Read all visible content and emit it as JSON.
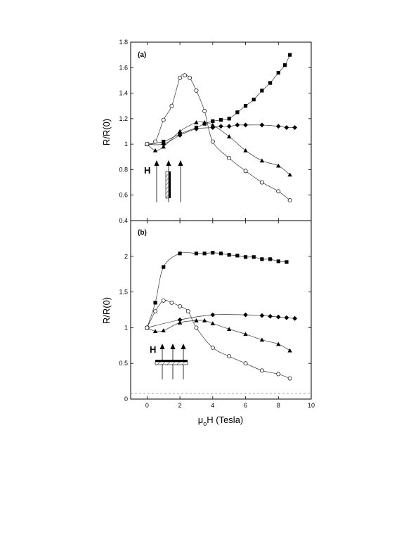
{
  "chart_data": [
    {
      "type": "line",
      "panel_label": "(a)",
      "ylabel": "R/R(0)",
      "xlim": [
        -1,
        10
      ],
      "ylim": [
        0.4,
        1.8
      ],
      "yticks": [
        "0.4",
        "0.6",
        "0.8",
        "1",
        "1.2",
        "1.4",
        "1.6",
        "1.8"
      ],
      "inset_label": "H",
      "series": [
        {
          "marker": "filled-square",
          "x": [
            0,
            1,
            2,
            3,
            3.5,
            4,
            4.5,
            5,
            5.5,
            6,
            6.5,
            7,
            7.5,
            8,
            8.4,
            8.7
          ],
          "y": [
            1.0,
            1.02,
            1.08,
            1.13,
            1.16,
            1.18,
            1.19,
            1.2,
            1.25,
            1.3,
            1.35,
            1.42,
            1.48,
            1.56,
            1.62,
            1.7
          ]
        },
        {
          "marker": "filled-diamond",
          "x": [
            0,
            1,
            2,
            3,
            4,
            4.5,
            5,
            5.5,
            6,
            7,
            8,
            8.5,
            9
          ],
          "y": [
            1.0,
            1.0,
            1.07,
            1.12,
            1.13,
            1.14,
            1.14,
            1.15,
            1.15,
            1.15,
            1.14,
            1.13,
            1.13
          ]
        },
        {
          "marker": "filled-triangle",
          "x": [
            0,
            0.5,
            1,
            2,
            3,
            3.5,
            4,
            5,
            6,
            7,
            8,
            8.7
          ],
          "y": [
            1.0,
            0.95,
            0.98,
            1.1,
            1.17,
            1.17,
            1.15,
            1.06,
            0.95,
            0.87,
            0.83,
            0.76
          ]
        },
        {
          "marker": "open-circle",
          "x": [
            0,
            0.5,
            1,
            1.5,
            2,
            2.3,
            2.6,
            3,
            3.5,
            4,
            5,
            6,
            7,
            8,
            8.7
          ],
          "y": [
            1.0,
            1.02,
            1.19,
            1.3,
            1.52,
            1.54,
            1.52,
            1.42,
            1.26,
            1.02,
            0.89,
            0.79,
            0.7,
            0.63,
            0.56
          ]
        }
      ]
    },
    {
      "type": "line",
      "panel_label": "(b)",
      "ylabel": "R/R(0)",
      "xlabel_main": "μ",
      "xlabel_sub": "o",
      "xlabel_rest": "H (Tesla)",
      "xlim": [
        -1,
        10
      ],
      "ylim": [
        0,
        2.5
      ],
      "xticks": [
        "0",
        "2",
        "4",
        "6",
        "8",
        "10"
      ],
      "yticks": [
        "0",
        "0.5",
        "1",
        "1.5",
        "2"
      ],
      "inset_label": "H",
      "series": [
        {
          "marker": "filled-square",
          "x": [
            0,
            0.5,
            1,
            2,
            3,
            3.5,
            4,
            4.5,
            5,
            5.5,
            6,
            6.5,
            7,
            7.5,
            8,
            8.5
          ],
          "y": [
            1.0,
            1.35,
            1.85,
            2.04,
            2.04,
            2.04,
            2.05,
            2.04,
            2.02,
            2.01,
            1.99,
            1.99,
            1.96,
            1.96,
            1.93,
            1.92
          ]
        },
        {
          "marker": "filled-diamond",
          "x": [
            0,
            2,
            4,
            6,
            7,
            7.5,
            8,
            8.5,
            9
          ],
          "y": [
            1.0,
            1.11,
            1.18,
            1.18,
            1.17,
            1.16,
            1.15,
            1.14,
            1.13
          ]
        },
        {
          "marker": "filled-triangle",
          "x": [
            0,
            0.5,
            1,
            2,
            3,
            3.5,
            4,
            5,
            6,
            7,
            8,
            8.7
          ],
          "y": [
            1.0,
            0.95,
            0.96,
            1.07,
            1.1,
            1.1,
            1.06,
            0.98,
            0.91,
            0.83,
            0.77,
            0.68
          ]
        },
        {
          "marker": "open-circle",
          "x": [
            0,
            0.5,
            1,
            1.5,
            2,
            2.5,
            3,
            4,
            5,
            6,
            7,
            8,
            8.7
          ],
          "y": [
            1.0,
            1.23,
            1.38,
            1.35,
            1.3,
            1.23,
            1.0,
            0.72,
            0.6,
            0.5,
            0.4,
            0.35,
            0.29
          ]
        }
      ]
    }
  ]
}
